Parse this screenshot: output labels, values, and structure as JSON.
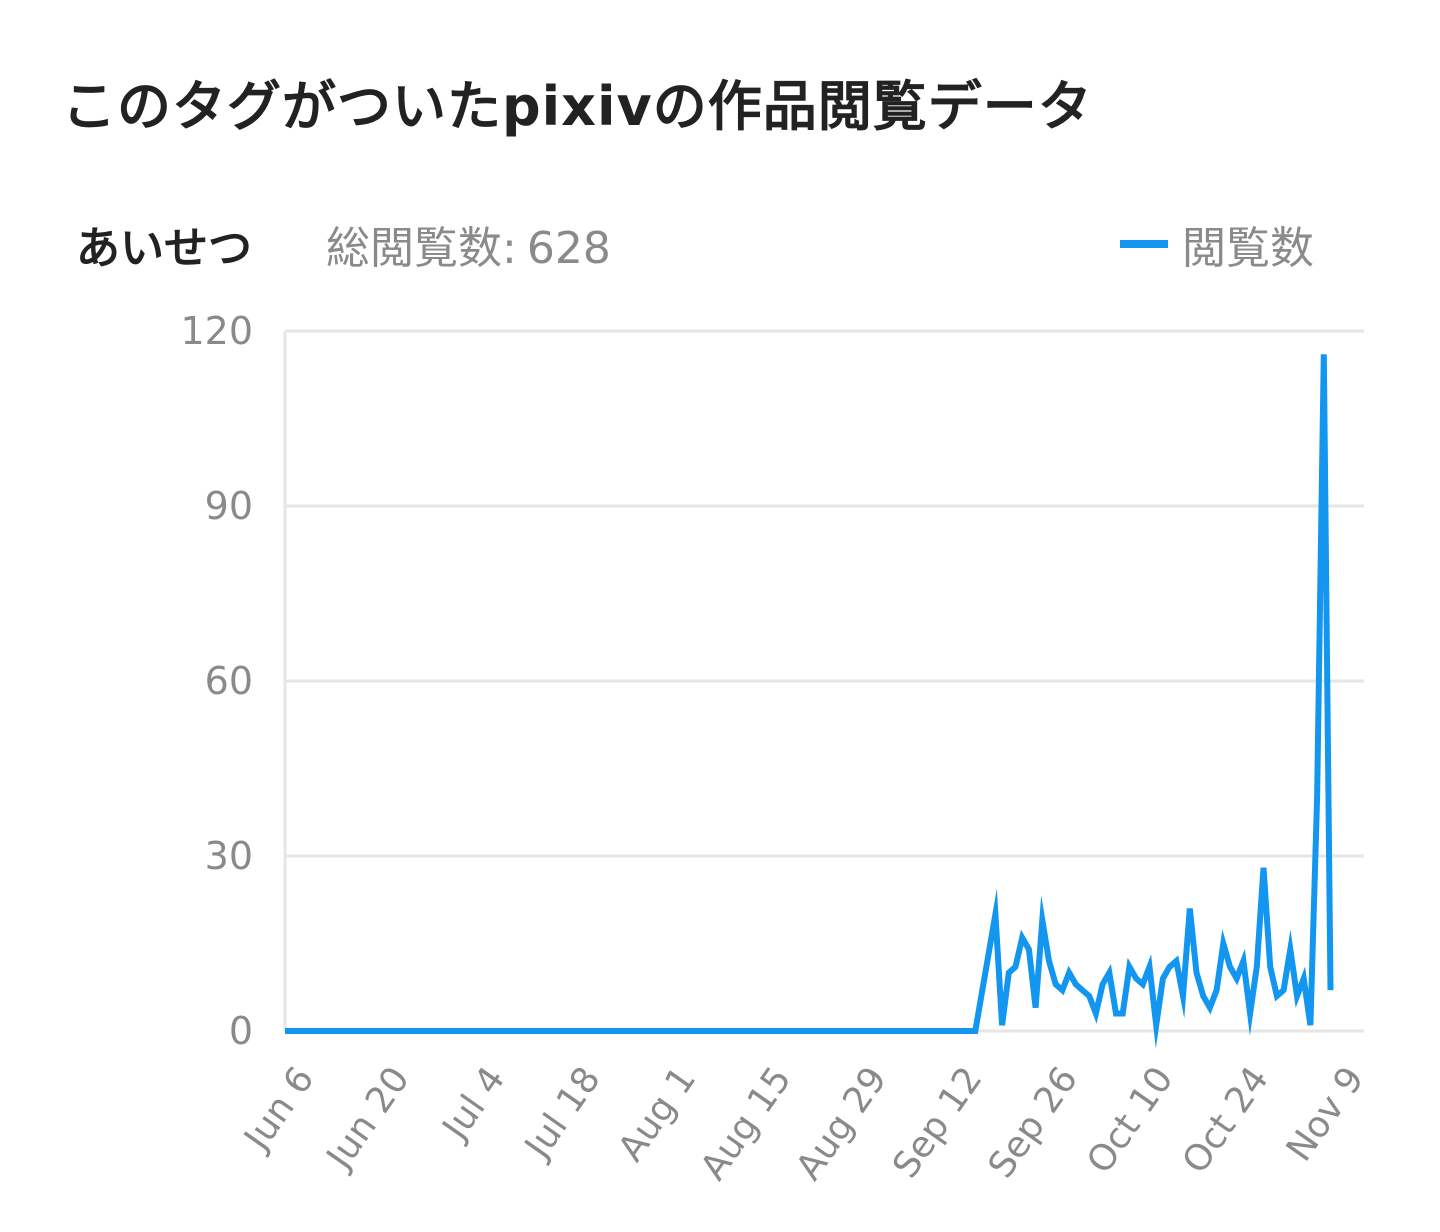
{
  "page": {
    "title": "このタグがついたpixivの作品閲覧データ"
  },
  "summary": {
    "tag_name": "あいせつ",
    "total_label": "総閲覧数:",
    "total_value": "628"
  },
  "colors": {
    "line": "#1296f0",
    "grid": "#e6e6e6",
    "axis_text": "#8a8a8a",
    "title_text": "#222222"
  },
  "chart_data": {
    "type": "line",
    "title": "",
    "xlabel": "",
    "ylabel": "",
    "ylim": [
      0,
      120
    ],
    "yticks": [
      0,
      30,
      60,
      90,
      120
    ],
    "grid": true,
    "legend_position": "top-right",
    "x_start": "2023-06-06",
    "x_end": "2023-11-14",
    "x_tick_labels": [
      "Jun 6",
      "Jun 20",
      "Jul 4",
      "Jul 18",
      "Aug 1",
      "Aug 15",
      "Aug 29",
      "Sep 12",
      "Sep 26",
      "Oct 10",
      "Oct 24",
      "Nov 9"
    ],
    "series": [
      {
        "name": "閲覧数",
        "color": "#1296f0",
        "points": [
          [
            "2023-06-06",
            0
          ],
          [
            "2023-09-17",
            0
          ],
          [
            "2023-09-20",
            20
          ],
          [
            "2023-09-21",
            1
          ],
          [
            "2023-09-22",
            10
          ],
          [
            "2023-09-23",
            11
          ],
          [
            "2023-09-24",
            16
          ],
          [
            "2023-09-25",
            14
          ],
          [
            "2023-09-26",
            4
          ],
          [
            "2023-09-27",
            19
          ],
          [
            "2023-09-28",
            12
          ],
          [
            "2023-09-29",
            8
          ],
          [
            "2023-09-30",
            7
          ],
          [
            "2023-10-01",
            10
          ],
          [
            "2023-10-02",
            8
          ],
          [
            "2023-10-03",
            7
          ],
          [
            "2023-10-04",
            6
          ],
          [
            "2023-10-05",
            3
          ],
          [
            "2023-10-06",
            8
          ],
          [
            "2023-10-07",
            10
          ],
          [
            "2023-10-08",
            3
          ],
          [
            "2023-10-09",
            3
          ],
          [
            "2023-10-10",
            11
          ],
          [
            "2023-10-11",
            9
          ],
          [
            "2023-10-12",
            8
          ],
          [
            "2023-10-13",
            11
          ],
          [
            "2023-10-14",
            1
          ],
          [
            "2023-10-15",
            9
          ],
          [
            "2023-10-16",
            11
          ],
          [
            "2023-10-17",
            12
          ],
          [
            "2023-10-18",
            6
          ],
          [
            "2023-10-19",
            21
          ],
          [
            "2023-10-20",
            10
          ],
          [
            "2023-10-21",
            6
          ],
          [
            "2023-10-22",
            4
          ],
          [
            "2023-10-23",
            7
          ],
          [
            "2023-10-24",
            15
          ],
          [
            "2023-10-25",
            11
          ],
          [
            "2023-10-26",
            9
          ],
          [
            "2023-10-27",
            12
          ],
          [
            "2023-10-28",
            3
          ],
          [
            "2023-10-29",
            11
          ],
          [
            "2023-10-30",
            28
          ],
          [
            "2023-10-31",
            11
          ],
          [
            "2023-11-01",
            6
          ],
          [
            "2023-11-02",
            7
          ],
          [
            "2023-11-03",
            14
          ],
          [
            "2023-11-04",
            6
          ],
          [
            "2023-11-05",
            9
          ],
          [
            "2023-11-06",
            1
          ],
          [
            "2023-11-07",
            40
          ],
          [
            "2023-11-08",
            116
          ],
          [
            "2023-11-09",
            7
          ]
        ]
      }
    ]
  }
}
